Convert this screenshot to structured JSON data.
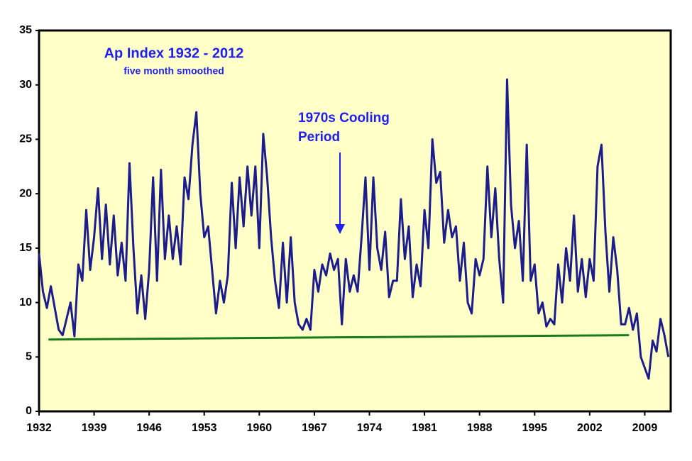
{
  "chart_data": {
    "type": "line",
    "title": "Ap Index 1932 - 2012",
    "subtitle": "five month smoothed",
    "annotation": {
      "text_lines": [
        "1970s Cooling",
        "Period"
      ],
      "color": "#2020ee"
    },
    "x": [
      1932,
      1932.5,
      1933,
      1933.5,
      1934,
      1934.5,
      1935,
      1935.5,
      1936,
      1936.5,
      1937,
      1937.5,
      1938,
      1938.5,
      1939,
      1939.5,
      1940,
      1940.5,
      1941,
      1941.5,
      1942,
      1942.5,
      1943,
      1943.5,
      1944,
      1944.5,
      1945,
      1945.5,
      1946,
      1946.5,
      1947,
      1947.5,
      1948,
      1948.5,
      1949,
      1949.5,
      1950,
      1950.5,
      1951,
      1951.5,
      1952,
      1952.5,
      1953,
      1953.5,
      1954,
      1954.5,
      1955,
      1955.5,
      1956,
      1956.5,
      1957,
      1957.5,
      1958,
      1958.5,
      1959,
      1959.5,
      1960,
      1960.5,
      1961,
      1961.5,
      1962,
      1962.5,
      1963,
      1963.5,
      1964,
      1964.5,
      1965,
      1965.5,
      1966,
      1966.5,
      1967,
      1967.5,
      1968,
      1968.5,
      1969,
      1969.5,
      1970,
      1970.5,
      1971,
      1971.5,
      1972,
      1972.5,
      1973,
      1973.5,
      1974,
      1974.5,
      1975,
      1975.5,
      1976,
      1976.5,
      1977,
      1977.5,
      1978,
      1978.5,
      1979,
      1979.5,
      1980,
      1980.5,
      1981,
      1981.5,
      1982,
      1982.5,
      1983,
      1983.5,
      1984,
      1984.5,
      1985,
      1985.5,
      1986,
      1986.5,
      1987,
      1987.5,
      1988,
      1988.5,
      1989,
      1989.5,
      1990,
      1990.5,
      1991,
      1991.5,
      1992,
      1992.5,
      1993,
      1993.5,
      1994,
      1994.5,
      1995,
      1995.5,
      1996,
      1996.5,
      1997,
      1997.5,
      1998,
      1998.5,
      1999,
      1999.5,
      2000,
      2000.5,
      2001,
      2001.5,
      2002,
      2002.5,
      2003,
      2003.5,
      2004,
      2004.5,
      2005,
      2005.5,
      2006,
      2006.5,
      2007,
      2007.5,
      2008,
      2008.5,
      2009,
      2009.5,
      2010,
      2010.5,
      2011,
      2011.5,
      2012
    ],
    "series": [
      {
        "color": "#1c1c8c",
        "values": [
          14.5,
          11,
          9.5,
          11.5,
          9.5,
          7.5,
          7,
          8.5,
          10,
          6.9,
          13.5,
          12,
          18.5,
          13,
          16,
          20.5,
          14,
          19,
          13.5,
          18,
          12.5,
          15.5,
          12,
          22.8,
          15,
          9,
          12.5,
          8.5,
          13,
          21.5,
          12,
          22.2,
          14,
          18,
          14,
          17,
          13.5,
          21.5,
          19.5,
          24.5,
          27.5,
          20,
          16,
          17,
          13,
          9,
          12,
          10,
          12.5,
          21,
          15,
          21.5,
          17,
          22.5,
          18,
          22.5,
          15,
          25.5,
          21.5,
          16,
          12,
          9.5,
          15.5,
          10,
          16,
          10,
          8,
          7.5,
          8.5,
          7.5,
          13,
          11,
          13.5,
          12.5,
          14.5,
          13,
          14,
          8,
          14,
          11,
          12.5,
          11,
          16,
          21.5,
          13,
          21.5,
          15,
          13,
          16.5,
          10.5,
          12,
          12,
          19.5,
          14,
          17,
          10.5,
          13.5,
          11.5,
          18.5,
          15,
          25,
          21,
          22,
          15.5,
          18.5,
          16,
          17,
          12,
          15.5,
          10,
          9,
          14,
          12.5,
          14,
          22.5,
          16,
          20.5,
          14,
          10,
          30.5,
          19,
          15,
          17.5,
          12,
          24.5,
          12,
          13.5,
          9,
          10,
          7.8,
          8.5,
          8,
          13.5,
          10,
          15,
          12,
          18,
          11,
          14,
          10.5,
          14,
          12,
          22.5,
          24.5,
          16.5,
          11,
          16,
          13,
          8,
          8,
          9.5,
          7.5,
          9,
          5,
          4,
          3,
          6.5,
          5.5,
          8.5,
          7,
          5
        ]
      }
    ],
    "trend": {
      "x": [
        1933.2,
        2007
      ],
      "values": [
        6.6,
        7.0
      ],
      "color": "#1a7a1a"
    },
    "xlim": [
      1932,
      2012.3
    ],
    "xticks": [
      1932,
      1939,
      1946,
      1953,
      1960,
      1967,
      1974,
      1981,
      1988,
      1995,
      2002,
      2009
    ],
    "ylim": [
      0,
      35
    ],
    "yticks": [
      0,
      5,
      10,
      15,
      20,
      25,
      30,
      35
    ],
    "background": "#ffffc8",
    "grid": false
  }
}
